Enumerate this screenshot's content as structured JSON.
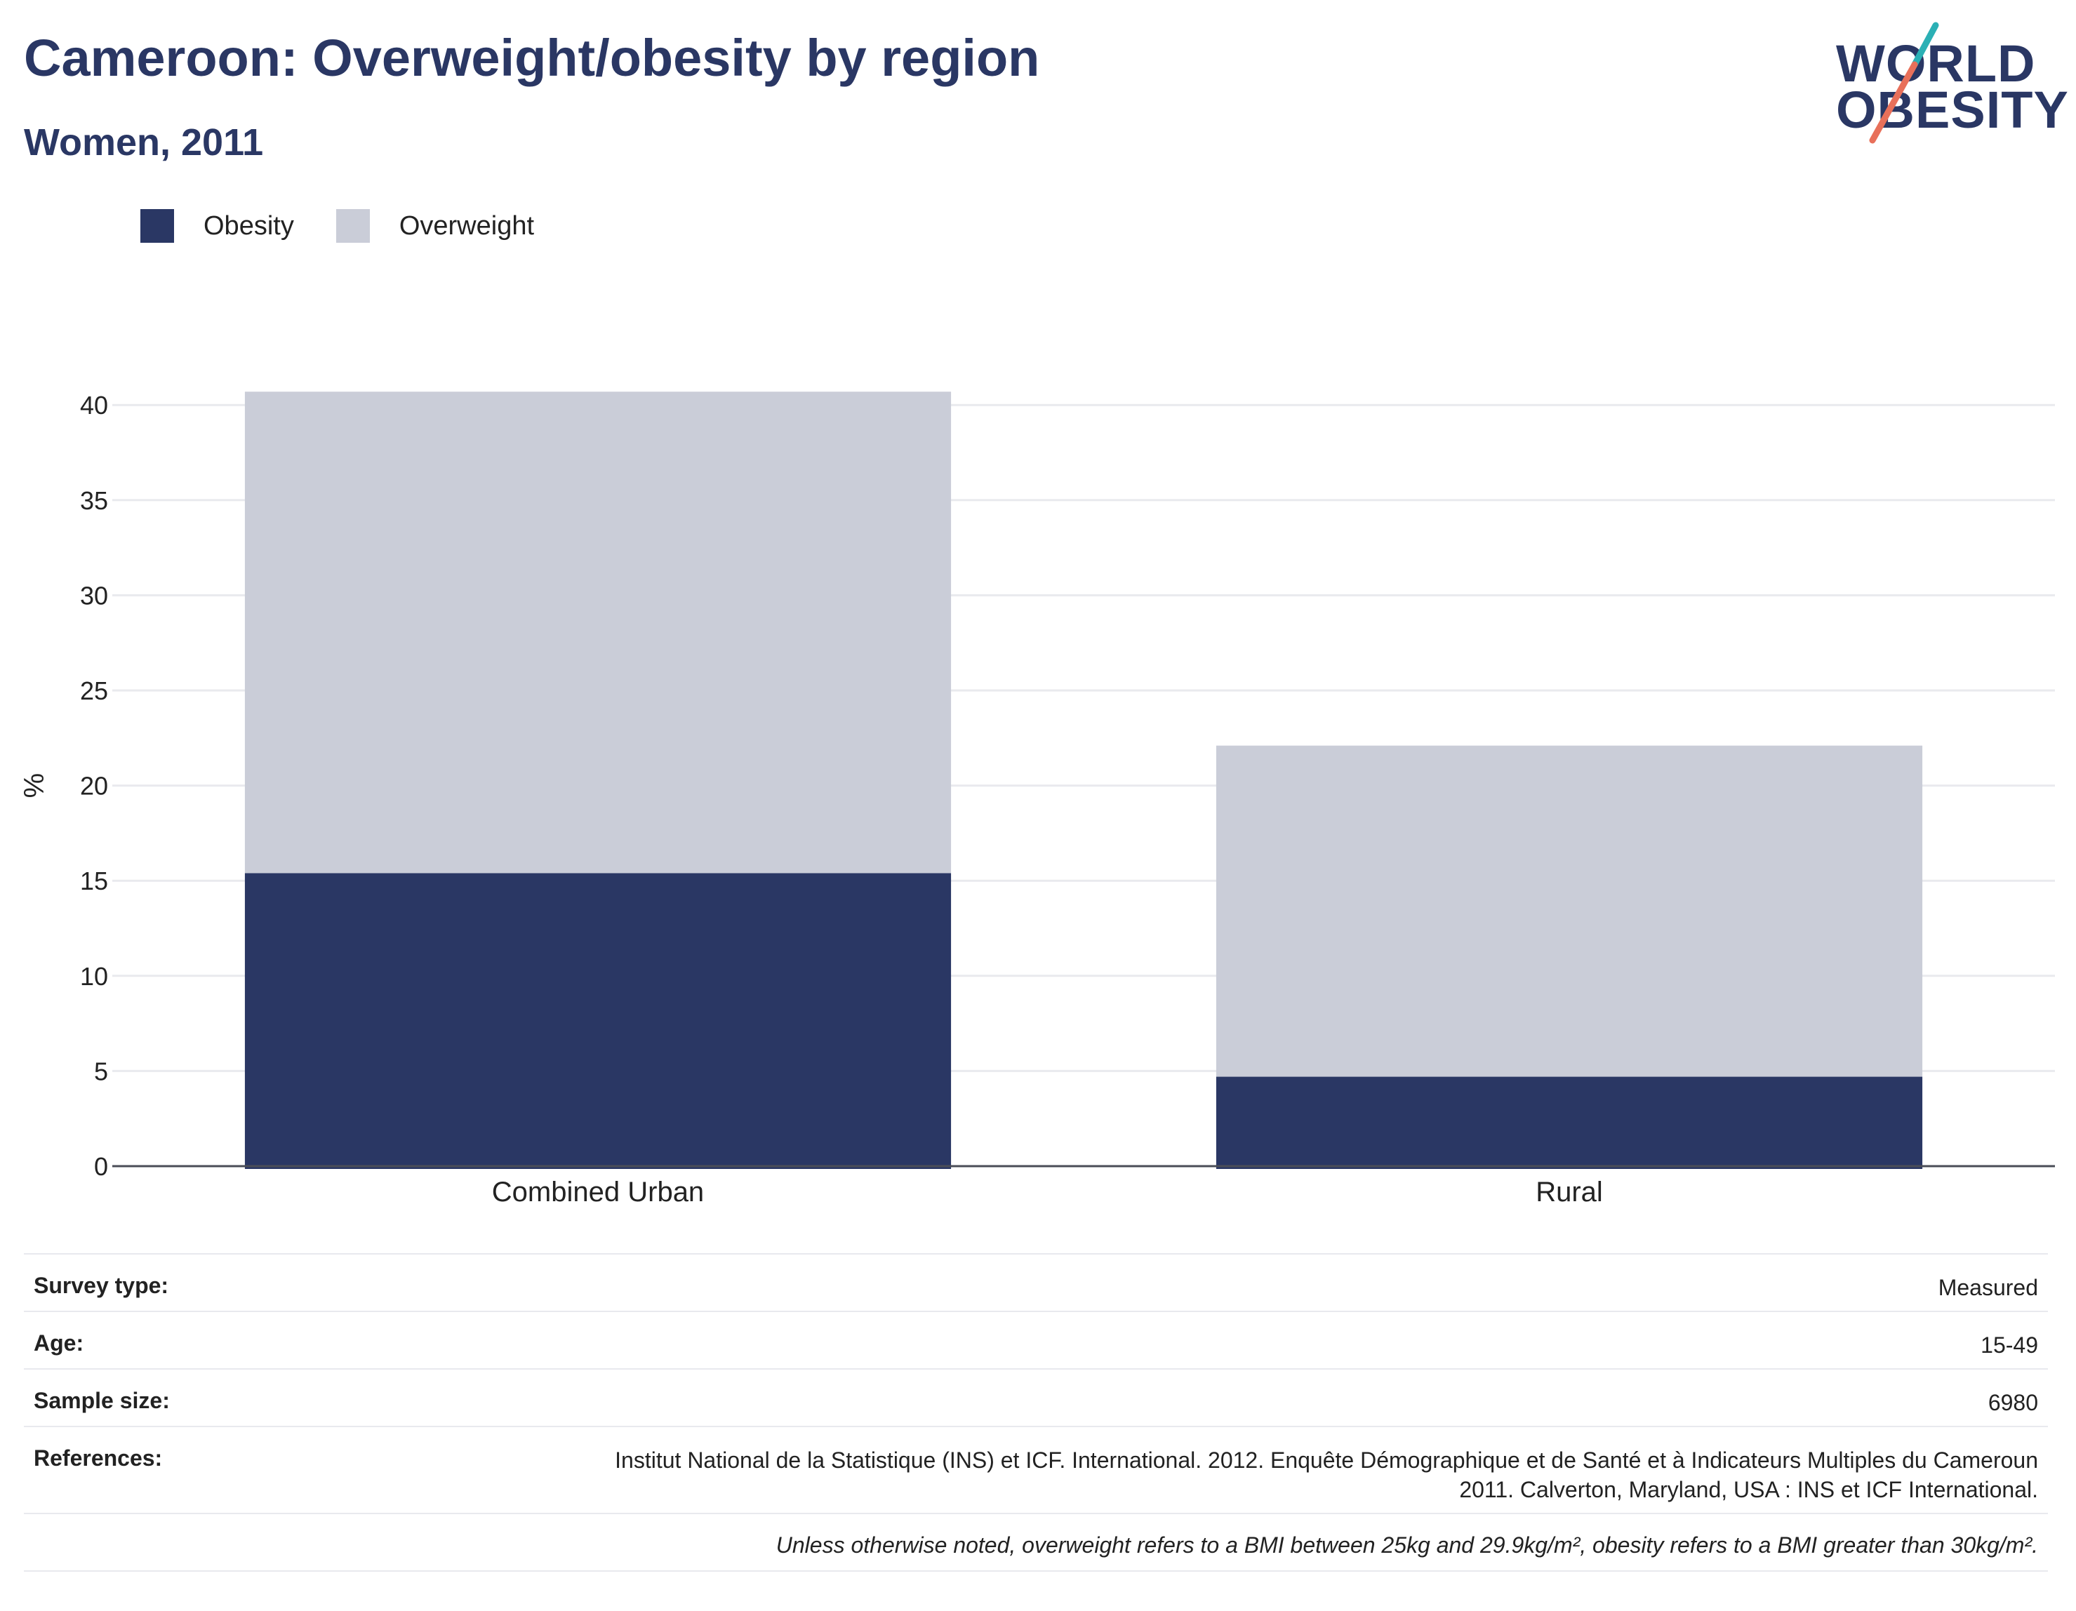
{
  "header": {
    "title": "Cameroon: Overweight/obesity by region",
    "subtitle": "Women, 2011"
  },
  "logo": {
    "line1": "WORLD",
    "line2": "OBESITY",
    "text_color": "#2a3764",
    "accent_teal": "#2bb0b5",
    "accent_coral": "#e8705a"
  },
  "legend": [
    {
      "label": "Obesity",
      "color": "#2a3764"
    },
    {
      "label": "Overweight",
      "color": "#cacdd8"
    }
  ],
  "chart_data": {
    "type": "bar",
    "stacked": true,
    "categories": [
      "Combined Urban",
      "Rural"
    ],
    "series": [
      {
        "name": "Obesity",
        "color": "#2a3764",
        "values": [
          15.4,
          4.7
        ]
      },
      {
        "name": "Overweight",
        "color": "#cacdd8",
        "values": [
          25.3,
          17.4
        ]
      }
    ],
    "ylabel": "%",
    "xlabel": "",
    "ylim": [
      0,
      41
    ],
    "yticks": [
      0,
      5,
      10,
      15,
      20,
      25,
      30,
      35,
      40
    ],
    "grid": true,
    "legend_position": "top-left"
  },
  "info": {
    "survey_type_label": "Survey type:",
    "survey_type_value": "Measured",
    "age_label": "Age:",
    "age_value": "15-49",
    "sample_size_label": "Sample size:",
    "sample_size_value": "6980",
    "references_label": "References:",
    "references_value": "Institut National de la Statistique (INS) et ICF. International. 2012. Enquête Démographique et de Santé et à Indicateurs Multiples du Cameroun 2011. Calverton, Maryland, USA : INS et ICF International.",
    "note": "Unless otherwise noted, overweight refers to a BMI between 25kg and 29.9kg/m², obesity refers to a BMI greater than 30kg/m²."
  }
}
